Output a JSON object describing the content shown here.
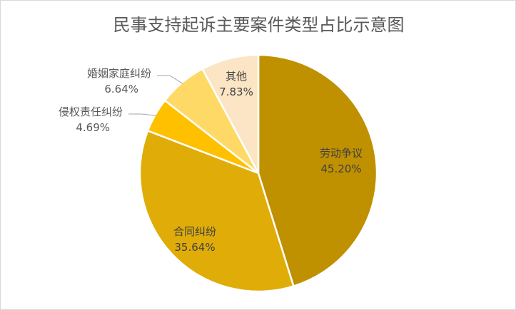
{
  "chart_data": {
    "type": "pie",
    "title": "民事支持起诉主要案件类型占比示意图",
    "slices": [
      {
        "name": "劳动争议",
        "value": 45.2,
        "label": "45.20%",
        "color": "#bf9000"
      },
      {
        "name": "合同纠纷",
        "value": 35.64,
        "label": "35.64%",
        "color": "#e0ac08"
      },
      {
        "name": "侵权责任纠纷",
        "value": 4.69,
        "label": "4.69%",
        "color": "#ffc000"
      },
      {
        "name": "婚姻家庭纠纷",
        "value": 6.64,
        "label": "6.64%",
        "color": "#ffd966"
      },
      {
        "name": "其他",
        "value": 7.83,
        "label": "7.83%",
        "color": "#fbe5c4"
      }
    ],
    "legend": "none",
    "start_angle_deg": 0,
    "direction": "clockwise"
  }
}
